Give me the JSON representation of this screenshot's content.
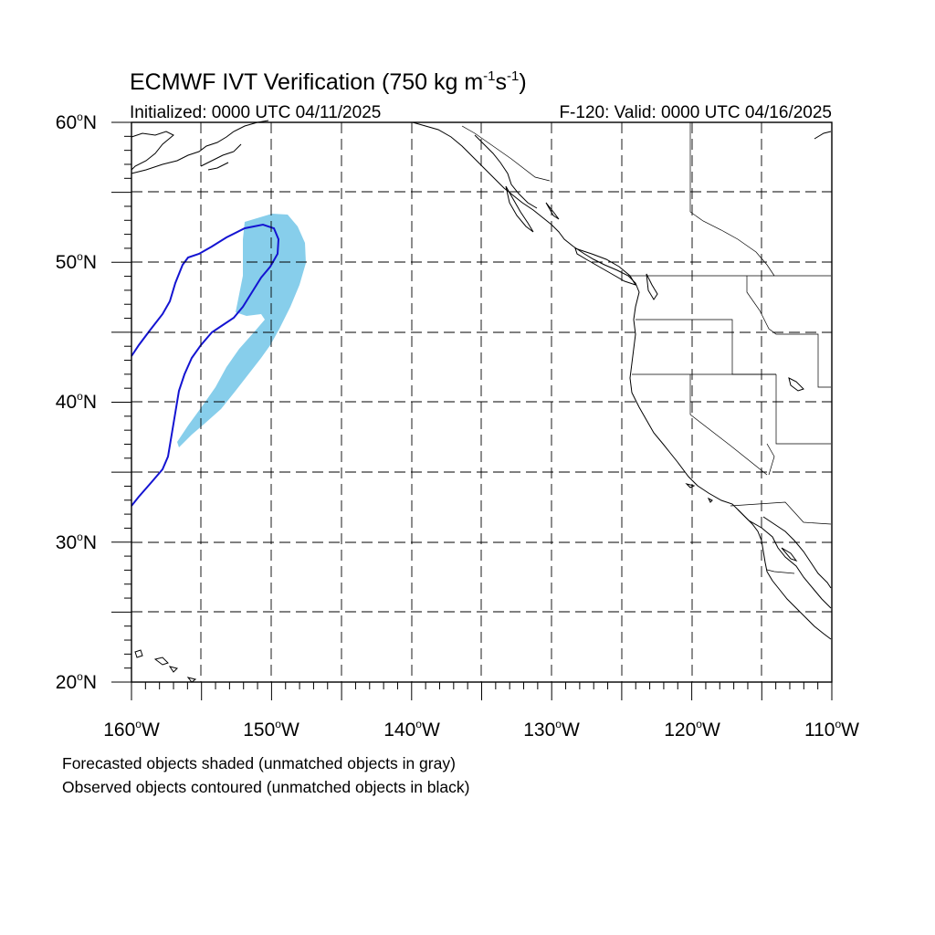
{
  "title": {
    "main": "ECMWF IVT Verification (750 kg m",
    "sup1": "-1",
    "mid": "s",
    "sup2": "-1",
    "close": ")"
  },
  "subtitle_left": "Initialized: 0000 UTC 04/11/2025",
  "subtitle_right": "F-120: Valid: 0000 UTC 04/16/2025",
  "lat_labels": [
    {
      "deg": "60",
      "suffix": "N"
    },
    {
      "deg": "50",
      "suffix": "N"
    },
    {
      "deg": "40",
      "suffix": "N"
    },
    {
      "deg": "30",
      "suffix": "N"
    },
    {
      "deg": "20",
      "suffix": "N"
    }
  ],
  "lon_labels": [
    {
      "deg": "160",
      "suffix": "W"
    },
    {
      "deg": "150",
      "suffix": "W"
    },
    {
      "deg": "140",
      "suffix": "W"
    },
    {
      "deg": "130",
      "suffix": "W"
    },
    {
      "deg": "120",
      "suffix": "W"
    },
    {
      "deg": "110",
      "suffix": "W"
    }
  ],
  "map_extent": {
    "lon": [
      -160,
      -110
    ],
    "lat": [
      20,
      60
    ]
  },
  "colors": {
    "forecast_fill": "#87CEEB",
    "observed_contour": "#1414D2"
  },
  "caption_1": "Forecasted objects shaded (unmatched objects in gray)",
  "caption_2": "Observed objects contoured (unmatched objects in black)"
}
